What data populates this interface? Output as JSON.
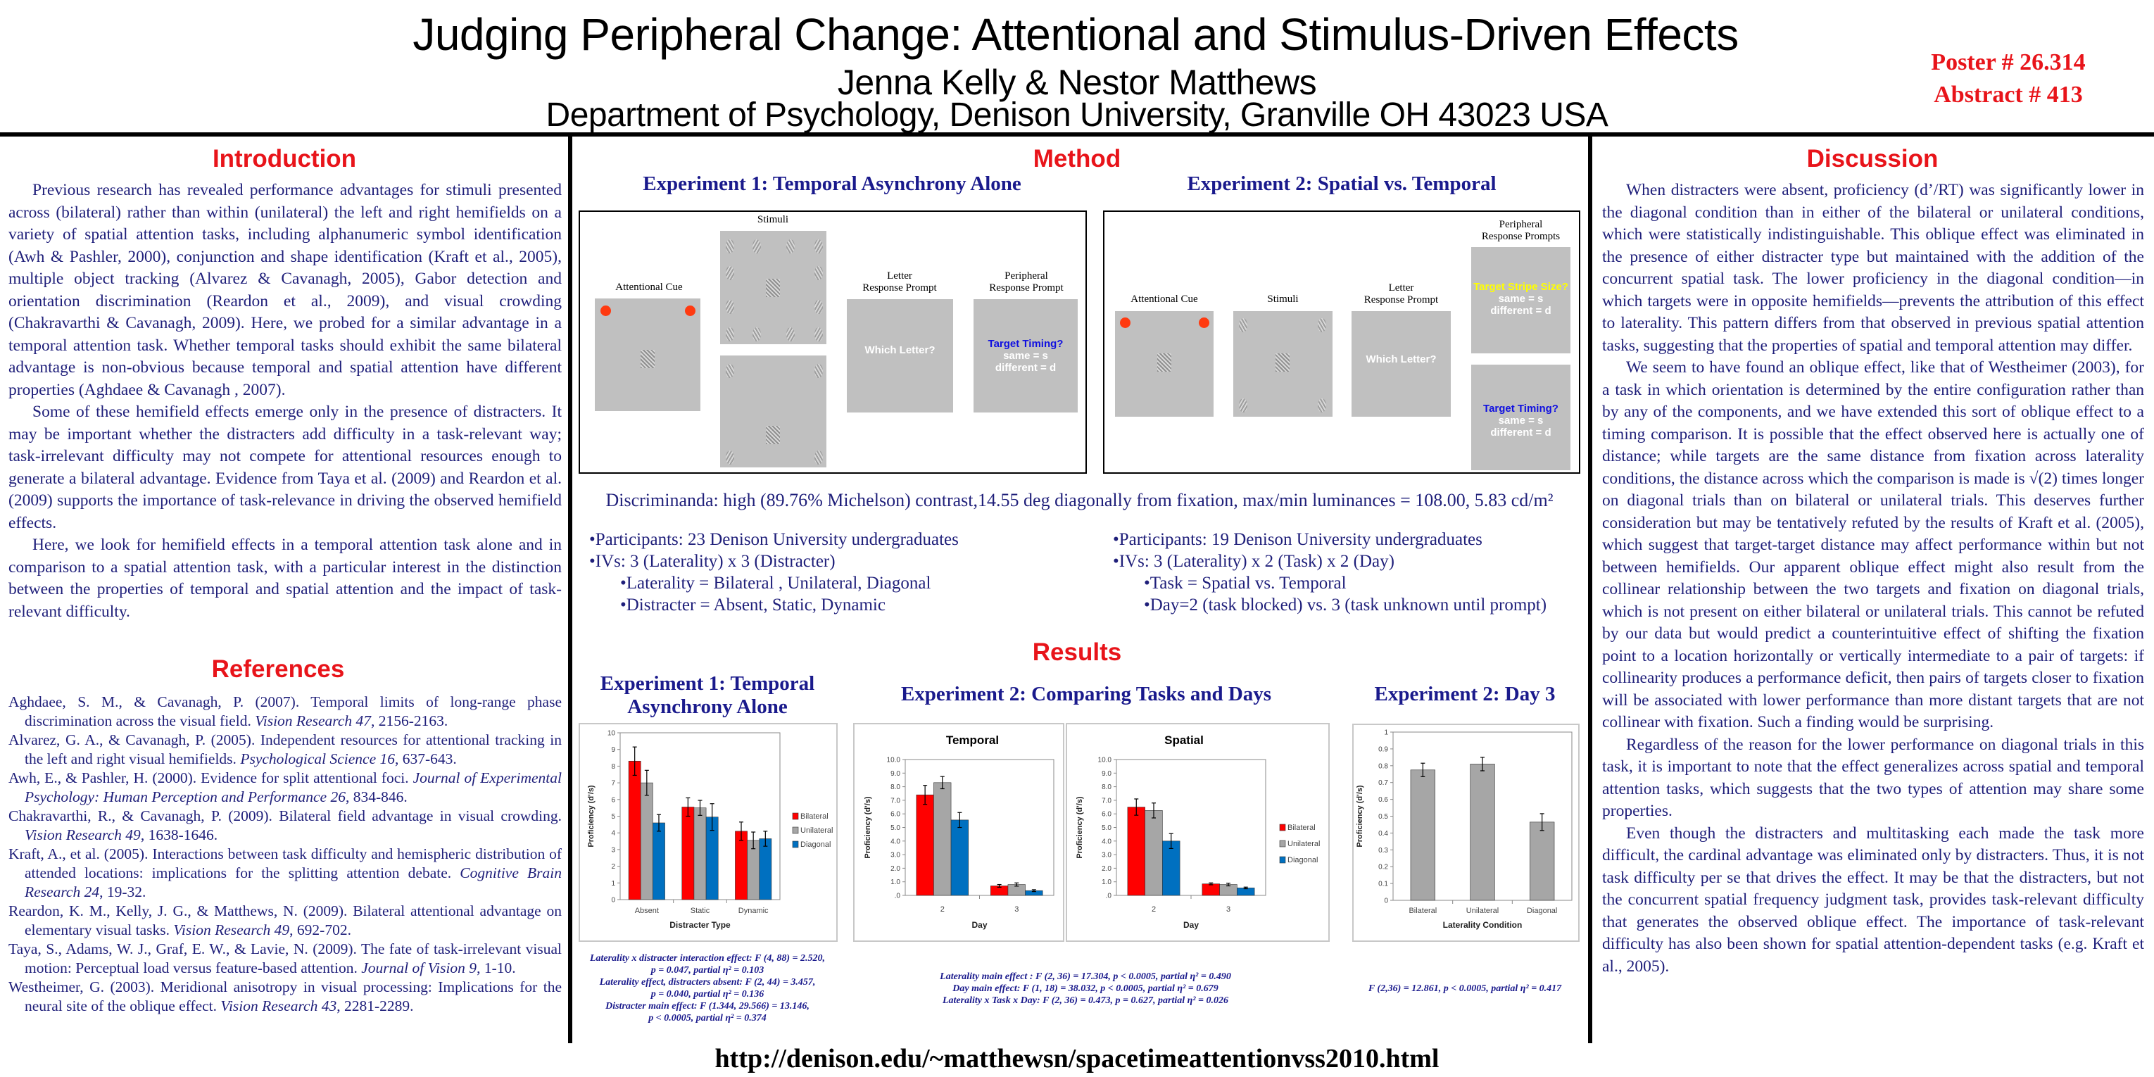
{
  "header": {
    "title": "Judging Peripheral Change: Attentional and Stimulus-Driven Effects",
    "authors": "Jenna Kelly & Nestor Matthews",
    "department": "Department of Psychology, Denison University, Granville OH 43023 USA",
    "poster_number": "Poster # 26.314",
    "abstract_number": "Abstract # 413"
  },
  "introduction": {
    "heading": "Introduction",
    "paragraphs": [
      "Previous research has revealed performance advantages for stimuli presented across (bilateral) rather than within (unilateral) the left and right hemifields on a variety of spatial attention tasks, including alphanumeric symbol identification (Awh & Pashler, 2000), conjunction and shape identification (Kraft et al., 2005), multiple object tracking (Alvarez & Cavanagh, 2005), Gabor detection and orientation discrimination (Reardon et al., 2009), and visual crowding (Chakravarthi & Cavanagh, 2009). Here, we probed for a similar advantage in a temporal attention task. Whether temporal tasks should exhibit the same bilateral advantage is non-obvious because temporal and spatial attention have different properties (Aghdaee & Cavanagh , 2007).",
      "Some of these hemifield effects emerge only in the presence of distracters. It may be important whether the distracters add difficulty in a task-relevant way; task-irrelevant difficulty may not compete for attentional resources enough to generate a bilateral advantage. Evidence from Taya et al. (2009) and Reardon et al. (2009) supports the importance of task-relevance in driving the observed hemifield effects.",
      "Here, we look for hemifield effects in a temporal attention task alone and in comparison to a spatial attention task, with a particular interest in the distinction between the properties of  temporal and spatial attention and the impact of task-relevant difficulty."
    ]
  },
  "references": {
    "heading": "References",
    "items": [
      {
        "text": "Aghdaee, S. M., & Cavanagh, P. (2007). Temporal limits of long-range phase discrimination across the visual field. ",
        "journal": "Vision Research 47",
        "tail": ", 2156-2163."
      },
      {
        "text": "Alvarez, G. A., & Cavanagh, P. (2005). Independent resources for attentional tracking in the left and right visual hemifields. ",
        "journal": "Psychological Science 16",
        "tail": ", 637-643."
      },
      {
        "text": "Awh, E., & Pashler, H. (2000). Evidence for split attentional foci. ",
        "journal": "Journal of Experimental Psychology: Human Perception and Performance 26",
        "tail": ", 834-846."
      },
      {
        "text": "Chakravarthi, R., & Cavanagh, P. (2009). Bilateral field advantage in visual crowding. ",
        "journal": "Vision Research 49",
        "tail": ", 1638-1646."
      },
      {
        "text": "Kraft, A., et al. (2005). Interactions between task difficulty and hemispheric distribution of attended locations: implications for the splitting attention debate. ",
        "journal": "Cognitive Brain Research 24",
        "tail": ", 19-32."
      },
      {
        "text": "Reardon, K. M., Kelly, J. G., & Matthews, N. (2009). Bilateral attentional advantage on elementary visual tasks. ",
        "journal": "Vision Research 49",
        "tail": ", 692-702."
      },
      {
        "text": "Taya, S., Adams, W. J., Graf, E. W., & Lavie, N. (2009). The fate of task-irrelevant visual motion: Perceptual load versus feature-based attention. ",
        "journal": "Journal of Vision 9",
        "tail": ", 1-10."
      },
      {
        "text": "Westheimer, G. (2003). Meridional anisotropy in visual processing: Implications for the neural site of the oblique effect. ",
        "journal": "Vision Research 43",
        "tail": ", 2281-2289."
      }
    ]
  },
  "method": {
    "heading": "Method",
    "exp1": {
      "title": "Experiment 1: Temporal Asynchrony Alone",
      "labels": {
        "cue": "Attentional Cue",
        "stimuli": "Stimuli",
        "letter_1": "Letter",
        "letter_2": "Response Prompt",
        "peripheral_1": "Peripheral",
        "peripheral_2": "Response Prompt"
      },
      "letter_prompt": "Which Letter?",
      "timing_prompt": {
        "question": "Target Timing?",
        "same": "same = s",
        "different": "different = d"
      },
      "list": [
        "•Participants: 23 Denison University undergraduates",
        "•IVs: 3 (Laterality) x 3  (Distracter)",
        "•Laterality = Bilateral , Unilateral, Diagonal",
        "•Distracter = Absent, Static, Dynamic"
      ]
    },
    "exp2": {
      "title": "Experiment 2: Spatial vs. Temporal",
      "labels": {
        "cue": "Attentional Cue",
        "stimuli": "Stimuli",
        "letter_1": "Letter",
        "letter_2": "Response Prompt",
        "peripheral_1": "Peripheral",
        "peripheral_2": "Response Prompts"
      },
      "letter_prompt": "Which Letter?",
      "stripe_prompt": {
        "question": "Target Stripe Size?",
        "same": "same = s",
        "different": "different = d"
      },
      "timing_prompt": {
        "question": "Target Timing?",
        "same": "same = s",
        "different": "different = d"
      },
      "list": [
        "•Participants: 19 Denison University undergraduates",
        "•IVs: 3 (Laterality) x 2  (Task) x 2 (Day)",
        "•Task = Spatial vs. Temporal",
        "•Day=2 (task blocked) vs. 3 (task unknown until prompt)"
      ]
    },
    "discriminanda": "Discriminanda: high (89.76% Michelson) contrast,14.55 deg diagonally from fixation, max/min luminances = 108.00, 5.83 cd/m²"
  },
  "results": {
    "heading": "Results",
    "exp1_title_1": "Experiment 1: Temporal",
    "exp1_title_2": "Asynchrony Alone",
    "exp2_title": "Experiment 2: Comparing Tasks and Days",
    "day3_title": "Experiment 2: Day 3",
    "exp1_stats": [
      "Laterality x distracter interaction effect: F (4, 88) = 2.520,",
      "p = 0.047, partial η² = 0.103",
      "Laterality effect, distracters absent: F (2, 44) = 3.457,",
      "p = 0.040, partial η² = 0.136",
      "Distracter main effect: F (1.344, 29.566) = 13.146,",
      "p < 0.0005, partial η² = 0.374"
    ],
    "exp2_stats": [
      "Laterality main effect : F (2, 36) = 17.304, p < 0.0005, partial η² = 0.490",
      "Day main effect: F (1, 18) = 38.032, p < 0.0005, partial η² = 0.679",
      "Laterality x Task x Day: F (2, 36) = 0.473, p = 0.627, partial η² = 0.026"
    ],
    "day3_stats": "F (2,36) = 12.861, p < 0.0005, partial η² = 0.417"
  },
  "discussion": {
    "heading": "Discussion",
    "paragraphs": [
      "When distracters were absent, proficiency (d’/RT) was significantly lower in the diagonal condition than in either of the bilateral or unilateral conditions, which were statistically indistinguishable. This oblique effect was eliminated in the presence of either distracter type but maintained with the addition of the concurrent spatial task. The lower proficiency in the diagonal condition—in which targets were in opposite hemifields—prevents the attribution of this effect to laterality. This pattern differs from that observed in previous spatial attention tasks, suggesting that the properties of spatial and temporal attention may differ.",
      "We seem to have found an oblique effect, like that of Westheimer (2003), for a task in which orientation is determined by the entire configuration rather than by any of the components, and we have extended this sort of oblique effect to a timing comparison. It is possible that the effect observed here is actually one of distance; while targets are the same distance from fixation across laterality conditions, the distance across which the comparison is made is √(2) times longer on diagonal trials than on bilateral or unilateral trials. This deserves further consideration but may be tentatively refuted by the results of Kraft et al. (2005), which suggest that target-target distance may affect performance within but not between hemifields. Our apparent oblique effect might also result from the collinear relationship between the two targets and fixation on diagonal trials, which is not present on either bilateral or unilateral trials. This cannot be refuted by our data but would predict a counterintuitive effect of shifting the fixation point to a location horizontally or vertically intermediate to a pair of targets: if collinearity produces a performance deficit, then pairs of targets closer to fixation will be associated with lower performance than more distant targets that are not collinear with fixation. Such a finding would be surprising.",
      "Regardless of the reason for the lower performance on diagonal trials in this task, it is important to note that the effect generalizes across spatial and temporal attention tasks, which suggests that the two types of attention may share some properties.",
      "Even though the distracters and multitasking each made the task more difficult, the cardinal advantage was eliminated only by distracters. Thus, it is not task difficulty per se that drives the effect. It may be that the distracters, but not the concurrent spatial frequency judgment task, provides task-relevant difficulty that generates the observed oblique effect.  The importance of task-relevant difficulty has also been shown for spatial attention-dependent tasks (e.g. Kraft et al., 2005)."
    ]
  },
  "footer": {
    "url": "http://denison.edu/~matthewsn/spacetimeattentionvss2010.html"
  },
  "colors": {
    "accent_red": "#e8141a",
    "navy": "#1f1f7a",
    "bilateral": "#ff0000",
    "unilateral": "#a6a6a6",
    "diagonal": "#0070c0"
  },
  "chart_data": [
    {
      "id": "exp1",
      "type": "bar",
      "title": "",
      "categories": [
        "Absent",
        "Static",
        "Dynamic"
      ],
      "series": [
        {
          "name": "Bilateral",
          "color": "#ff0000",
          "values": [
            8.3,
            5.55,
            4.1
          ],
          "errors": [
            0.85,
            0.55,
            0.55
          ]
        },
        {
          "name": "Unilateral",
          "color": "#a6a6a6",
          "values": [
            7.0,
            5.5,
            3.55
          ],
          "errors": [
            0.75,
            0.45,
            0.5
          ]
        },
        {
          "name": "Diagonal",
          "color": "#0070c0",
          "values": [
            4.6,
            4.95,
            3.65
          ],
          "errors": [
            0.5,
            0.8,
            0.45
          ]
        }
      ],
      "xlabel": "Distracter Type",
      "ylabel": "Proficiency (d'/s)",
      "ylim": [
        0,
        10
      ],
      "yticks": [
        0,
        1,
        2,
        3,
        4,
        5,
        6,
        7,
        8,
        9,
        10
      ],
      "ytick_labels": [
        "0",
        "1",
        "2",
        "3",
        "4",
        "5",
        "6",
        "7",
        "8",
        "9",
        "10"
      ],
      "legend": "right",
      "grid": false
    },
    {
      "id": "temporal",
      "type": "bar",
      "title": "Temporal",
      "categories": [
        "2",
        "3"
      ],
      "series": [
        {
          "name": "Bilateral",
          "color": "#ff0000",
          "values": [
            7.4,
            0.7
          ],
          "errors": [
            0.7,
            0.1
          ]
        },
        {
          "name": "Unilateral",
          "color": "#a6a6a6",
          "values": [
            8.3,
            0.8
          ],
          "errors": [
            0.45,
            0.12
          ]
        },
        {
          "name": "Diagonal",
          "color": "#0070c0",
          "values": [
            5.55,
            0.35
          ],
          "errors": [
            0.55,
            0.07
          ]
        }
      ],
      "xlabel": "Day",
      "ylabel": "Proficiency (d'/s)",
      "ylim": [
        0,
        10
      ],
      "yticks": [
        0,
        1,
        2,
        3,
        4,
        5,
        6,
        7,
        8,
        9,
        10
      ],
      "ytick_labels": [
        ".0",
        "1.0",
        "2.0",
        "3.0",
        "4.0",
        "5.0",
        "6.0",
        "7.0",
        "8.0",
        "9.0",
        "10.0"
      ],
      "legend": "none",
      "grid": false
    },
    {
      "id": "spatial",
      "type": "bar",
      "title": "Spatial",
      "categories": [
        "2",
        "3"
      ],
      "series": [
        {
          "name": "Bilateral",
          "color": "#ff0000",
          "values": [
            6.5,
            0.85
          ],
          "errors": [
            0.6,
            0.07
          ]
        },
        {
          "name": "Unilateral",
          "color": "#a6a6a6",
          "values": [
            6.25,
            0.8
          ],
          "errors": [
            0.55,
            0.1
          ]
        },
        {
          "name": "Diagonal",
          "color": "#0070c0",
          "values": [
            4.0,
            0.55
          ],
          "errors": [
            0.55,
            0.06
          ]
        }
      ],
      "xlabel": "Day",
      "ylabel": "Proficiency (d'/s)",
      "ylim": [
        0,
        10
      ],
      "yticks": [
        0,
        1,
        2,
        3,
        4,
        5,
        6,
        7,
        8,
        9,
        10
      ],
      "ytick_labels": [
        ".0",
        "1.0",
        "2.0",
        "3.0",
        "4.0",
        "5.0",
        "6.0",
        "7.0",
        "8.0",
        "9.0",
        "10.0"
      ],
      "legend": "right",
      "grid": false
    },
    {
      "id": "day3",
      "type": "bar",
      "title": "",
      "categories": [
        "Bilateral",
        "Unilateral",
        "Diagonal"
      ],
      "series": [
        {
          "name": "Proficiency",
          "color": "#a6a6a6",
          "values": [
            0.775,
            0.81,
            0.465
          ],
          "errors": [
            0.04,
            0.04,
            0.05
          ]
        }
      ],
      "xlabel": "Laterality Condition",
      "ylabel": "Proficiency (d'/s)",
      "ylim": [
        0,
        1
      ],
      "yticks": [
        0,
        0.1,
        0.2,
        0.3,
        0.4,
        0.5,
        0.6,
        0.7,
        0.8,
        0.9,
        1
      ],
      "ytick_labels": [
        "0",
        "0.1",
        "0.2",
        "0.3",
        "0.4",
        "0.5",
        "0.6",
        "0.7",
        "0.8",
        "0.9",
        "1"
      ],
      "legend": "none",
      "grid": false
    }
  ]
}
